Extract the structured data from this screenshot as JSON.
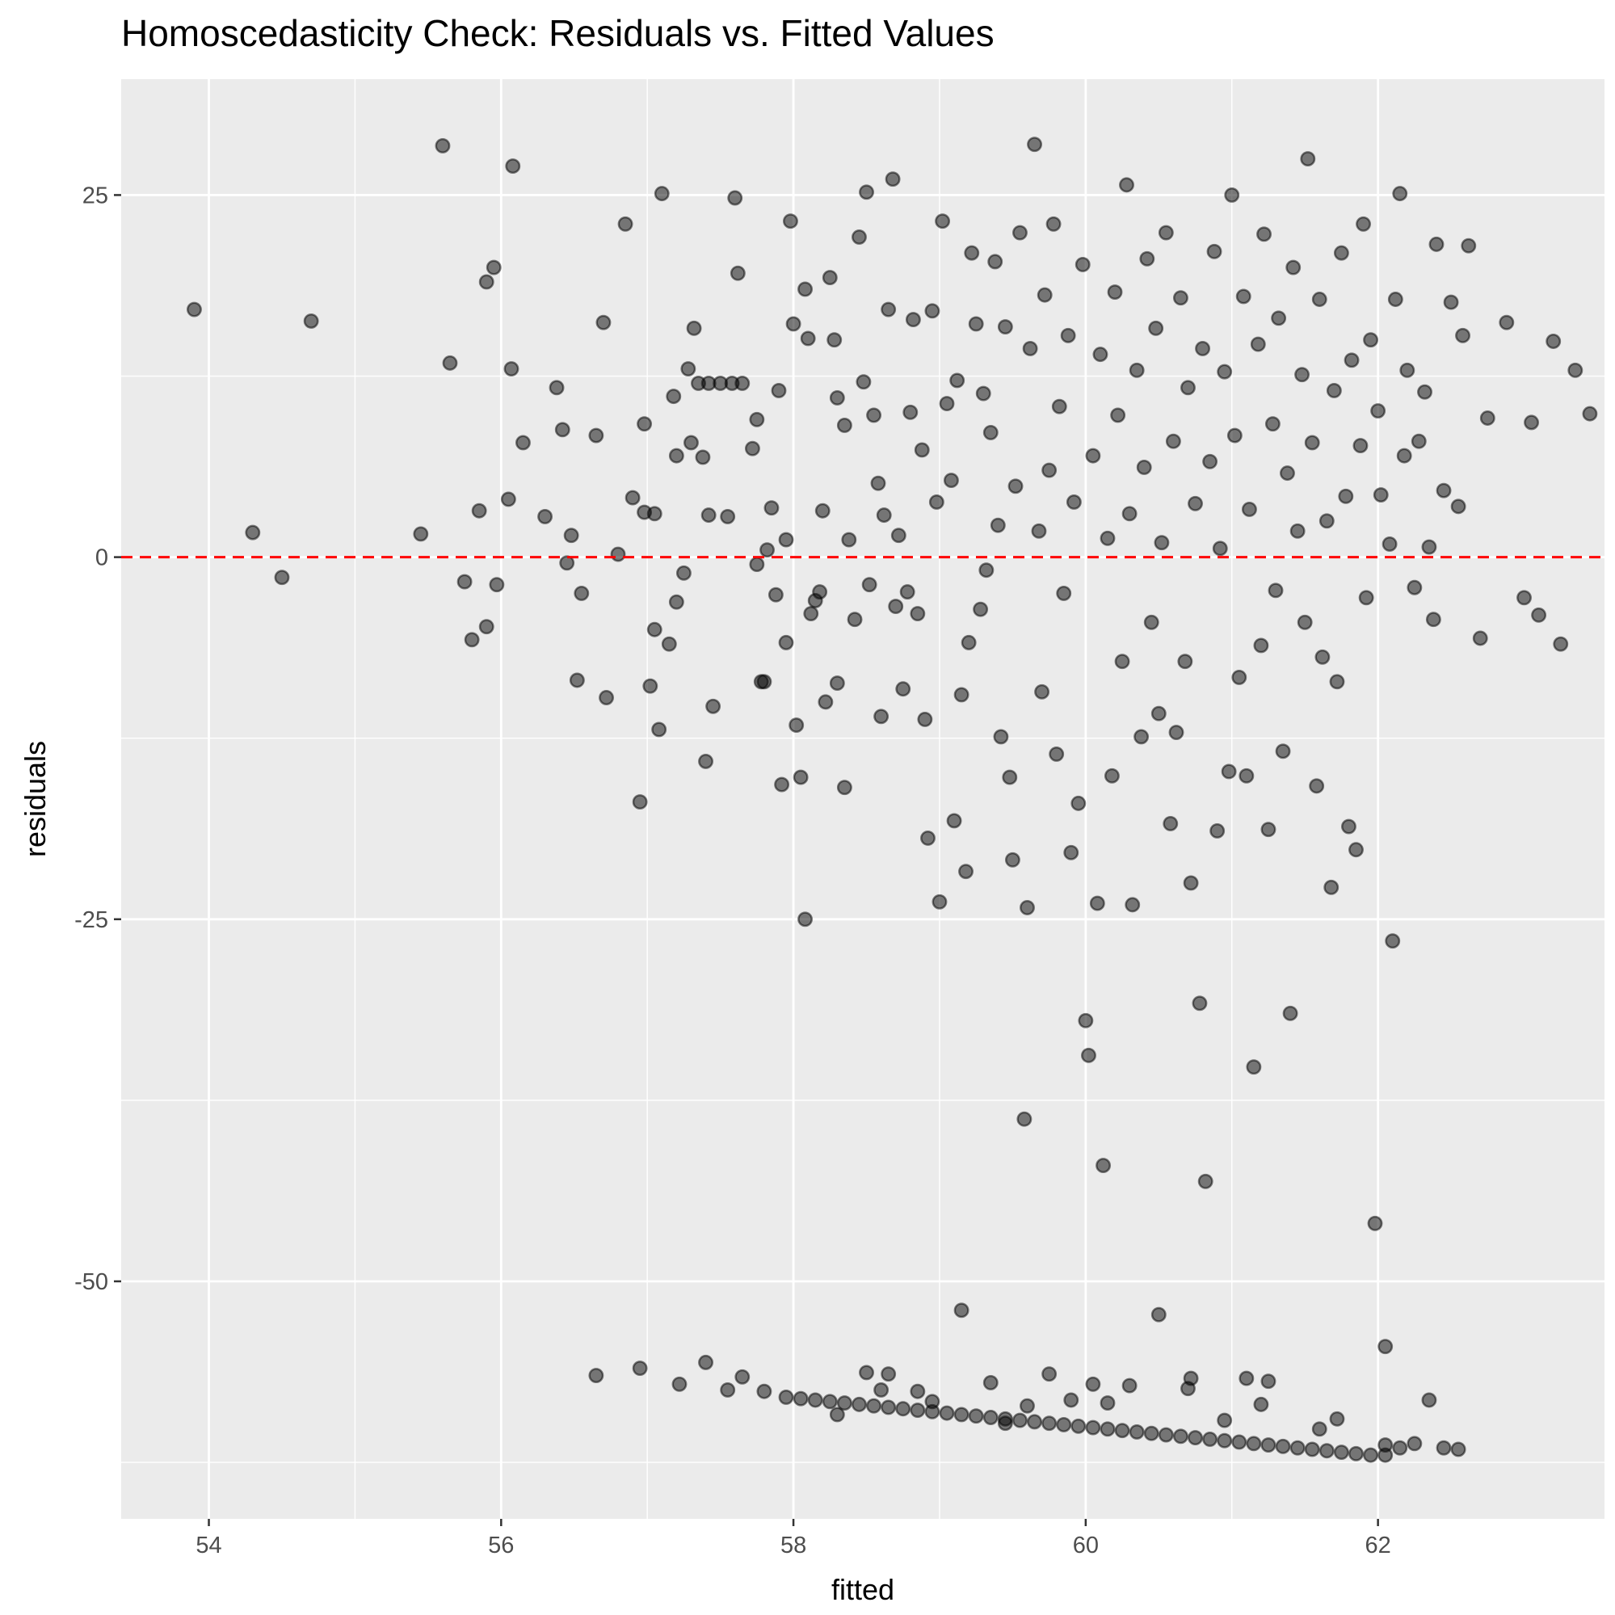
{
  "chart_data": {
    "type": "scatter",
    "title": "Homoscedasticity Check: Residuals vs. Fitted Values",
    "xlabel": "fitted",
    "ylabel": "residuals",
    "xlim": [
      53.4,
      63.55
    ],
    "ylim": [
      -66.4,
      33
    ],
    "x_ticks": [
      54,
      56,
      58,
      60,
      62
    ],
    "x_tick_labels": [
      "54",
      "56",
      "58",
      "60",
      "62"
    ],
    "y_ticks": [
      -50,
      -25,
      0,
      25
    ],
    "y_tick_labels": [
      "-50",
      "-25",
      "0",
      "25"
    ],
    "grid": true,
    "reference_line": {
      "y": 0,
      "style": "dashed",
      "color": "#ff0000"
    },
    "point_color": "#000000",
    "point_opacity": 0.5,
    "panel_background": "#ebebeb",
    "points": [
      [
        53.9,
        17.1
      ],
      [
        54.3,
        1.7
      ],
      [
        54.5,
        -1.4
      ],
      [
        54.7,
        16.3
      ],
      [
        55.45,
        1.6
      ],
      [
        55.6,
        28.4
      ],
      [
        55.65,
        13.4
      ],
      [
        55.75,
        -1.7
      ],
      [
        55.8,
        -5.7
      ],
      [
        55.85,
        3.2
      ],
      [
        55.9,
        19.0
      ],
      [
        55.9,
        -4.8
      ],
      [
        55.95,
        20.0
      ],
      [
        55.97,
        -1.9
      ],
      [
        56.05,
        4.0
      ],
      [
        56.07,
        13.0
      ],
      [
        56.08,
        27.0
      ],
      [
        56.15,
        7.9
      ],
      [
        56.3,
        2.8
      ],
      [
        56.38,
        11.7
      ],
      [
        56.42,
        8.8
      ],
      [
        56.45,
        -0.4
      ],
      [
        56.48,
        1.5
      ],
      [
        56.52,
        -8.5
      ],
      [
        56.55,
        -2.5
      ],
      [
        56.65,
        8.4
      ],
      [
        56.7,
        16.2
      ],
      [
        56.72,
        -9.7
      ],
      [
        56.8,
        0.2
      ],
      [
        56.85,
        23.0
      ],
      [
        56.9,
        4.1
      ],
      [
        56.95,
        -16.9
      ],
      [
        56.98,
        3.1
      ],
      [
        56.98,
        9.2
      ],
      [
        57.02,
        -8.9
      ],
      [
        57.05,
        3.0
      ],
      [
        57.05,
        -5.0
      ],
      [
        57.08,
        -11.9
      ],
      [
        57.1,
        25.1
      ],
      [
        57.15,
        -6.0
      ],
      [
        57.18,
        11.1
      ],
      [
        57.2,
        -3.1
      ],
      [
        57.2,
        7.0
      ],
      [
        57.25,
        -1.1
      ],
      [
        57.28,
        13.0
      ],
      [
        57.3,
        7.9
      ],
      [
        57.32,
        15.8
      ],
      [
        57.35,
        12.0
      ],
      [
        57.38,
        6.9
      ],
      [
        57.4,
        -14.1
      ],
      [
        57.42,
        12.0
      ],
      [
        57.42,
        2.9
      ],
      [
        57.45,
        -10.3
      ],
      [
        57.5,
        12.0
      ],
      [
        57.55,
        2.8
      ],
      [
        57.58,
        12.0
      ],
      [
        57.6,
        24.8
      ],
      [
        57.62,
        19.6
      ],
      [
        57.65,
        12.0
      ],
      [
        57.72,
        7.5
      ],
      [
        57.75,
        9.5
      ],
      [
        57.75,
        -0.5
      ],
      [
        57.78,
        -8.6
      ],
      [
        57.8,
        -8.6
      ],
      [
        57.82,
        0.5
      ],
      [
        57.85,
        3.4
      ],
      [
        57.88,
        -2.6
      ],
      [
        57.9,
        11.5
      ],
      [
        57.92,
        -15.7
      ],
      [
        57.95,
        -5.9
      ],
      [
        57.95,
        1.2
      ],
      [
        57.98,
        23.2
      ],
      [
        58.0,
        16.1
      ],
      [
        58.02,
        -11.6
      ],
      [
        58.05,
        -15.2
      ],
      [
        58.08,
        -25.0
      ],
      [
        58.08,
        18.5
      ],
      [
        58.1,
        15.1
      ],
      [
        58.12,
        -3.9
      ],
      [
        58.15,
        -3.0
      ],
      [
        58.18,
        -2.4
      ],
      [
        58.2,
        3.2
      ],
      [
        58.22,
        -10.0
      ],
      [
        58.25,
        19.3
      ],
      [
        58.28,
        15.0
      ],
      [
        58.3,
        11.0
      ],
      [
        58.3,
        -8.7
      ],
      [
        58.35,
        -15.9
      ],
      [
        58.35,
        9.1
      ],
      [
        58.38,
        1.2
      ],
      [
        58.42,
        -4.3
      ],
      [
        58.45,
        22.1
      ],
      [
        58.48,
        12.1
      ],
      [
        58.5,
        25.2
      ],
      [
        58.52,
        -1.9
      ],
      [
        58.55,
        9.8
      ],
      [
        58.58,
        5.1
      ],
      [
        58.6,
        -11.0
      ],
      [
        58.62,
        2.9
      ],
      [
        58.65,
        17.1
      ],
      [
        58.68,
        26.1
      ],
      [
        58.7,
        -3.4
      ],
      [
        58.72,
        1.5
      ],
      [
        58.75,
        -9.1
      ],
      [
        58.78,
        -2.4
      ],
      [
        58.8,
        10.0
      ],
      [
        58.82,
        16.4
      ],
      [
        58.85,
        -3.9
      ],
      [
        58.88,
        7.4
      ],
      [
        58.9,
        -11.2
      ],
      [
        58.92,
        -19.4
      ],
      [
        58.95,
        17.0
      ],
      [
        58.98,
        3.8
      ],
      [
        59.0,
        -23.8
      ],
      [
        59.02,
        23.2
      ],
      [
        59.05,
        10.6
      ],
      [
        59.08,
        5.3
      ],
      [
        59.1,
        -18.2
      ],
      [
        59.12,
        12.2
      ],
      [
        59.15,
        -9.5
      ],
      [
        59.18,
        -21.7
      ],
      [
        59.2,
        -5.9
      ],
      [
        59.22,
        21.0
      ],
      [
        59.25,
        16.1
      ],
      [
        59.28,
        -3.6
      ],
      [
        59.3,
        11.3
      ],
      [
        59.32,
        -0.9
      ],
      [
        59.35,
        8.6
      ],
      [
        59.38,
        20.4
      ],
      [
        59.4,
        2.2
      ],
      [
        59.42,
        -12.4
      ],
      [
        59.45,
        15.9
      ],
      [
        59.48,
        -15.2
      ],
      [
        59.5,
        -20.9
      ],
      [
        59.52,
        4.9
      ],
      [
        59.55,
        22.4
      ],
      [
        59.58,
        -38.8
      ],
      [
        59.6,
        -24.2
      ],
      [
        59.62,
        14.4
      ],
      [
        59.65,
        28.5
      ],
      [
        59.68,
        1.8
      ],
      [
        59.7,
        -9.3
      ],
      [
        59.72,
        18.1
      ],
      [
        59.75,
        6.0
      ],
      [
        59.78,
        23.0
      ],
      [
        59.8,
        -13.6
      ],
      [
        59.82,
        10.4
      ],
      [
        59.85,
        -2.5
      ],
      [
        59.88,
        15.3
      ],
      [
        59.9,
        -20.4
      ],
      [
        59.92,
        3.8
      ],
      [
        59.95,
        -17.0
      ],
      [
        59.98,
        20.2
      ],
      [
        60.0,
        -32.0
      ],
      [
        60.02,
        -34.4
      ],
      [
        60.05,
        7.0
      ],
      [
        60.08,
        -23.9
      ],
      [
        60.1,
        14.0
      ],
      [
        60.12,
        -42.0
      ],
      [
        60.15,
        1.3
      ],
      [
        60.18,
        -15.1
      ],
      [
        60.2,
        18.3
      ],
      [
        60.22,
        9.8
      ],
      [
        60.25,
        -7.2
      ],
      [
        60.28,
        25.7
      ],
      [
        60.3,
        3.0
      ],
      [
        60.32,
        -24.0
      ],
      [
        60.35,
        12.9
      ],
      [
        60.38,
        -12.4
      ],
      [
        60.4,
        6.2
      ],
      [
        60.42,
        20.6
      ],
      [
        60.45,
        -4.5
      ],
      [
        60.48,
        15.8
      ],
      [
        60.5,
        -10.8
      ],
      [
        60.52,
        1.0
      ],
      [
        60.55,
        22.4
      ],
      [
        60.58,
        -18.4
      ],
      [
        60.6,
        8.0
      ],
      [
        60.62,
        -12.1
      ],
      [
        60.65,
        17.9
      ],
      [
        60.68,
        -7.2
      ],
      [
        60.7,
        11.7
      ],
      [
        60.72,
        -22.5
      ],
      [
        60.75,
        3.7
      ],
      [
        60.78,
        -30.8
      ],
      [
        60.8,
        14.4
      ],
      [
        60.82,
        -43.1
      ],
      [
        60.85,
        6.6
      ],
      [
        60.88,
        21.1
      ],
      [
        60.9,
        -18.9
      ],
      [
        60.92,
        0.6
      ],
      [
        60.95,
        12.8
      ],
      [
        60.98,
        -14.8
      ],
      [
        61.0,
        25.0
      ],
      [
        61.02,
        8.4
      ],
      [
        61.05,
        -8.3
      ],
      [
        61.08,
        18.0
      ],
      [
        61.1,
        -15.1
      ],
      [
        61.12,
        3.3
      ],
      [
        61.15,
        -35.2
      ],
      [
        61.18,
        14.7
      ],
      [
        61.2,
        -6.1
      ],
      [
        61.22,
        22.3
      ],
      [
        61.25,
        -18.8
      ],
      [
        61.28,
        9.2
      ],
      [
        61.3,
        -2.3
      ],
      [
        61.32,
        16.5
      ],
      [
        61.35,
        -13.4
      ],
      [
        61.38,
        5.8
      ],
      [
        61.4,
        -31.5
      ],
      [
        61.42,
        20.0
      ],
      [
        61.45,
        1.8
      ],
      [
        61.48,
        12.6
      ],
      [
        61.5,
        -4.5
      ],
      [
        61.52,
        27.5
      ],
      [
        61.55,
        7.9
      ],
      [
        61.58,
        -15.8
      ],
      [
        61.6,
        17.8
      ],
      [
        61.62,
        -6.9
      ],
      [
        61.65,
        2.5
      ],
      [
        61.68,
        -22.8
      ],
      [
        61.7,
        11.5
      ],
      [
        61.72,
        -8.6
      ],
      [
        61.75,
        21.0
      ],
      [
        61.78,
        4.2
      ],
      [
        61.8,
        -18.6
      ],
      [
        61.82,
        13.6
      ],
      [
        61.85,
        -20.2
      ],
      [
        61.88,
        7.7
      ],
      [
        61.9,
        23.0
      ],
      [
        61.92,
        -2.8
      ],
      [
        61.95,
        15.0
      ],
      [
        61.98,
        -46.0
      ],
      [
        62.0,
        10.1
      ],
      [
        62.02,
        4.3
      ],
      [
        62.05,
        -54.5
      ],
      [
        62.08,
        0.9
      ],
      [
        62.1,
        -26.5
      ],
      [
        62.12,
        17.8
      ],
      [
        62.15,
        25.1
      ],
      [
        62.18,
        7.0
      ],
      [
        62.2,
        12.9
      ],
      [
        62.25,
        -2.1
      ],
      [
        62.28,
        8.0
      ],
      [
        62.32,
        11.4
      ],
      [
        62.35,
        0.7
      ],
      [
        62.38,
        -4.3
      ],
      [
        62.4,
        21.6
      ],
      [
        62.45,
        4.6
      ],
      [
        62.5,
        17.6
      ],
      [
        62.55,
        3.5
      ],
      [
        62.58,
        15.3
      ],
      [
        62.62,
        21.5
      ],
      [
        62.7,
        -5.6
      ],
      [
        62.75,
        9.6
      ],
      [
        62.88,
        16.2
      ],
      [
        63.0,
        -2.8
      ],
      [
        63.05,
        9.3
      ],
      [
        63.1,
        -4.0
      ],
      [
        63.2,
        14.9
      ],
      [
        63.25,
        -6.0
      ],
      [
        63.35,
        12.9
      ],
      [
        63.45,
        9.9
      ],
      [
        56.65,
        -56.5
      ],
      [
        56.95,
        -56.0
      ],
      [
        57.22,
        -57.1
      ],
      [
        57.4,
        -55.6
      ],
      [
        57.55,
        -57.5
      ],
      [
        57.65,
        -56.6
      ],
      [
        57.8,
        -57.6
      ],
      [
        57.95,
        -58.0
      ],
      [
        58.05,
        -58.1
      ],
      [
        58.15,
        -58.2
      ],
      [
        58.25,
        -58.3
      ],
      [
        58.35,
        -58.4
      ],
      [
        58.45,
        -58.5
      ],
      [
        58.55,
        -58.6
      ],
      [
        58.65,
        -58.7
      ],
      [
        58.75,
        -58.8
      ],
      [
        58.85,
        -58.9
      ],
      [
        58.95,
        -59.0
      ],
      [
        59.05,
        -59.1
      ],
      [
        59.15,
        -59.2
      ],
      [
        59.25,
        -59.3
      ],
      [
        59.35,
        -59.4
      ],
      [
        59.45,
        -59.5
      ],
      [
        59.55,
        -59.6
      ],
      [
        59.65,
        -59.7
      ],
      [
        59.75,
        -59.8
      ],
      [
        59.85,
        -59.9
      ],
      [
        59.95,
        -60.0
      ],
      [
        60.05,
        -60.1
      ],
      [
        60.15,
        -60.2
      ],
      [
        60.25,
        -60.3
      ],
      [
        60.35,
        -60.4
      ],
      [
        60.45,
        -60.5
      ],
      [
        60.55,
        -60.6
      ],
      [
        60.65,
        -60.7
      ],
      [
        60.75,
        -60.8
      ],
      [
        60.85,
        -60.9
      ],
      [
        60.95,
        -61.0
      ],
      [
        61.05,
        -61.1
      ],
      [
        61.15,
        -61.2
      ],
      [
        61.25,
        -61.3
      ],
      [
        61.35,
        -61.4
      ],
      [
        61.45,
        -61.5
      ],
      [
        61.55,
        -61.6
      ],
      [
        61.65,
        -61.7
      ],
      [
        61.75,
        -61.8
      ],
      [
        61.85,
        -61.9
      ],
      [
        61.95,
        -62.0
      ],
      [
        62.05,
        -62.0
      ],
      [
        62.15,
        -61.5
      ],
      [
        62.25,
        -61.2
      ],
      [
        62.45,
        -61.5
      ],
      [
        62.55,
        -61.6
      ],
      [
        58.5,
        -56.3
      ],
      [
        58.65,
        -56.4
      ],
      [
        58.85,
        -57.6
      ],
      [
        59.15,
        -52.0
      ],
      [
        59.35,
        -57.0
      ],
      [
        59.6,
        -58.6
      ],
      [
        59.75,
        -56.4
      ],
      [
        60.05,
        -57.1
      ],
      [
        60.3,
        -57.2
      ],
      [
        60.5,
        -52.3
      ],
      [
        60.7,
        -57.4
      ],
      [
        60.95,
        -59.6
      ],
      [
        61.1,
        -56.7
      ],
      [
        61.2,
        -58.5
      ],
      [
        61.6,
        -60.2
      ],
      [
        61.72,
        -59.5
      ],
      [
        62.05,
        -61.3
      ],
      [
        62.35,
        -58.2
      ],
      [
        61.25,
        -56.9
      ],
      [
        60.72,
        -56.7
      ],
      [
        60.15,
        -58.4
      ],
      [
        59.9,
        -58.2
      ],
      [
        59.45,
        -59.8
      ],
      [
        58.95,
        -58.3
      ],
      [
        58.6,
        -57.5
      ],
      [
        58.3,
        -59.2
      ]
    ]
  }
}
